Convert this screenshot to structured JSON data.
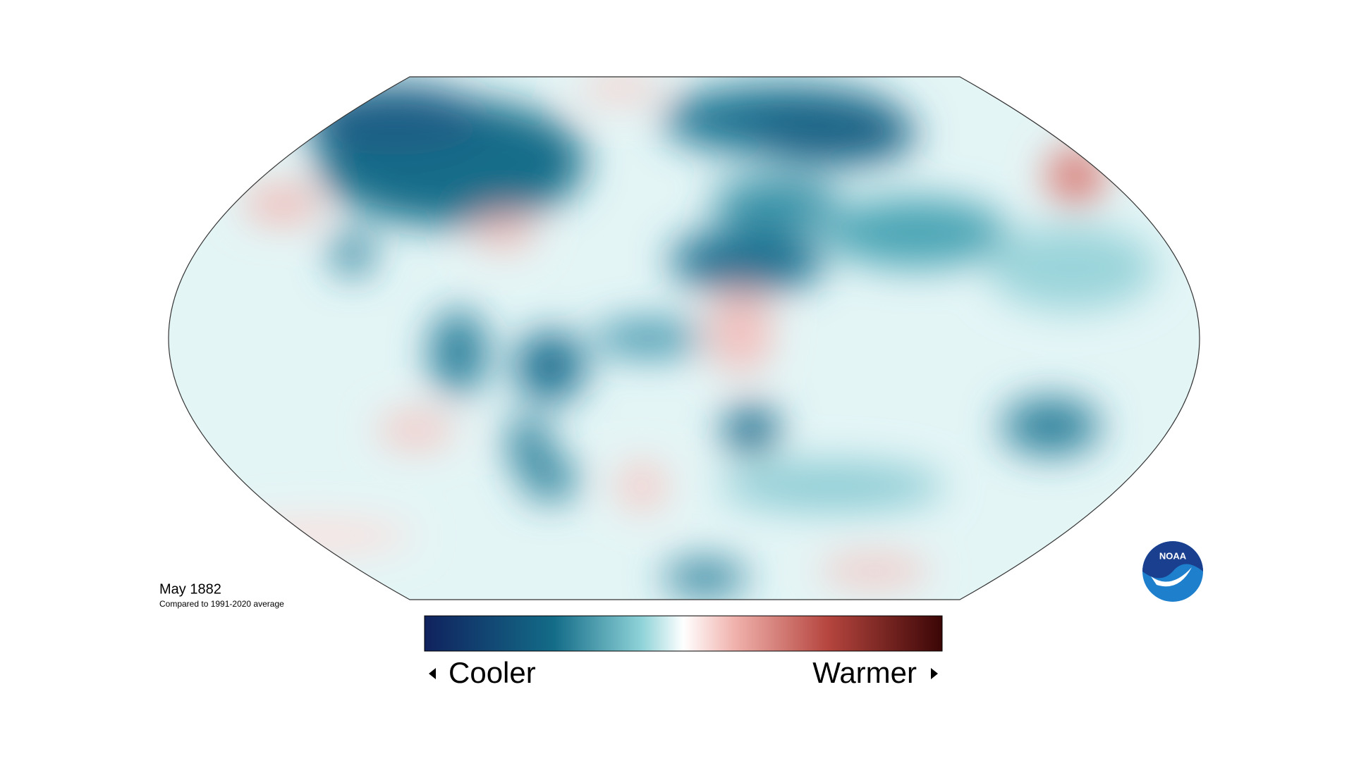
{
  "map": {
    "period": "May 1882",
    "subtitle": "Compared to 1991-2020 average"
  },
  "legend": {
    "low_label": "Cooler",
    "high_label": "Warmer"
  },
  "logo": {
    "text": "NOAA"
  }
}
